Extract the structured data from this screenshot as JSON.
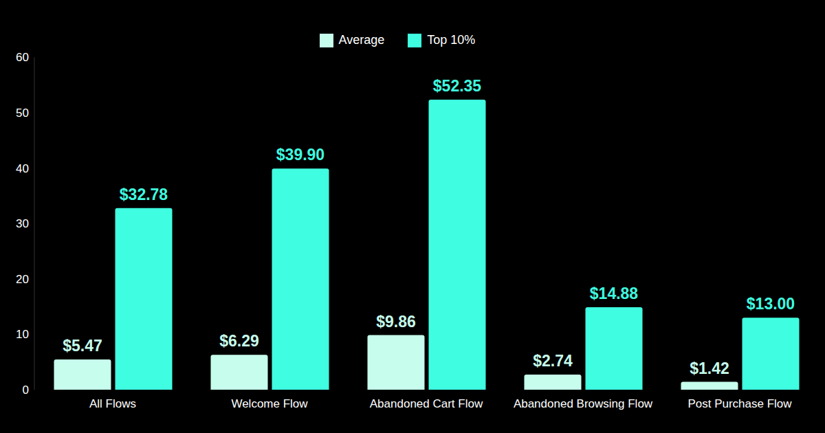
{
  "chart_data": {
    "type": "bar",
    "categories": [
      "All Flows",
      "Welcome Flow",
      "Abandoned Cart Flow",
      "Abandoned Browsing Flow",
      "Post Purchase Flow"
    ],
    "series": [
      {
        "name": "Average",
        "color": "#c6fdec",
        "values": [
          5.47,
          6.29,
          9.86,
          2.74,
          1.42
        ],
        "value_labels": [
          "$5.47",
          "$6.29",
          "$9.86",
          "$2.74",
          "$1.42"
        ]
      },
      {
        "name": "Top 10%",
        "color": "#3ffde0",
        "values": [
          32.78,
          39.9,
          52.35,
          14.88,
          13.0
        ],
        "value_labels": [
          "$32.78",
          "$39.90",
          "$52.35",
          "$14.88",
          "$13.00"
        ]
      }
    ],
    "ylim": [
      0,
      60
    ],
    "yticks": [
      0,
      10,
      20,
      30,
      40,
      50,
      60
    ],
    "grid": false,
    "legend": "top",
    "data_labels": true
  }
}
